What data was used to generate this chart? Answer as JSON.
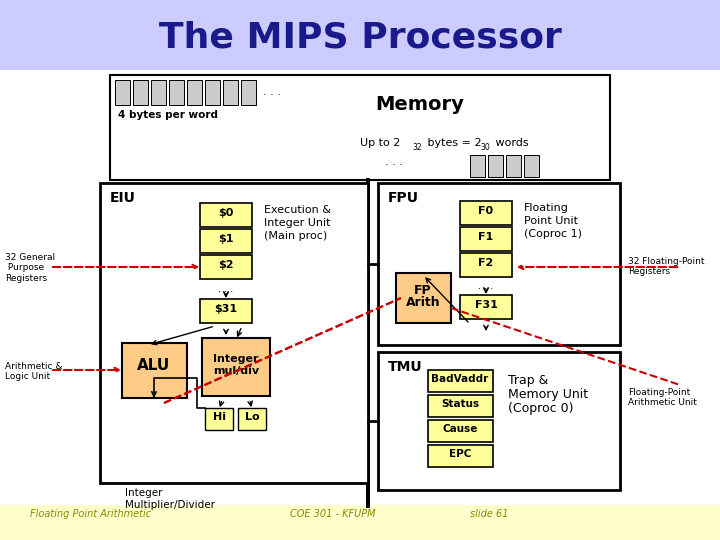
{
  "title": "The MIPS Processor",
  "title_color": "#1a1a8c",
  "bg_color": "#ffffff",
  "header_bg": "#ccccff",
  "footer_bg": "#ffffcc",
  "footer_texts": [
    "Floating Point Arithmetic",
    "COE 301 - KFUPM",
    "slide 61"
  ],
  "yellow": "#ffff99",
  "orange": "#ffcc88",
  "gray_reg": "#cccccc"
}
